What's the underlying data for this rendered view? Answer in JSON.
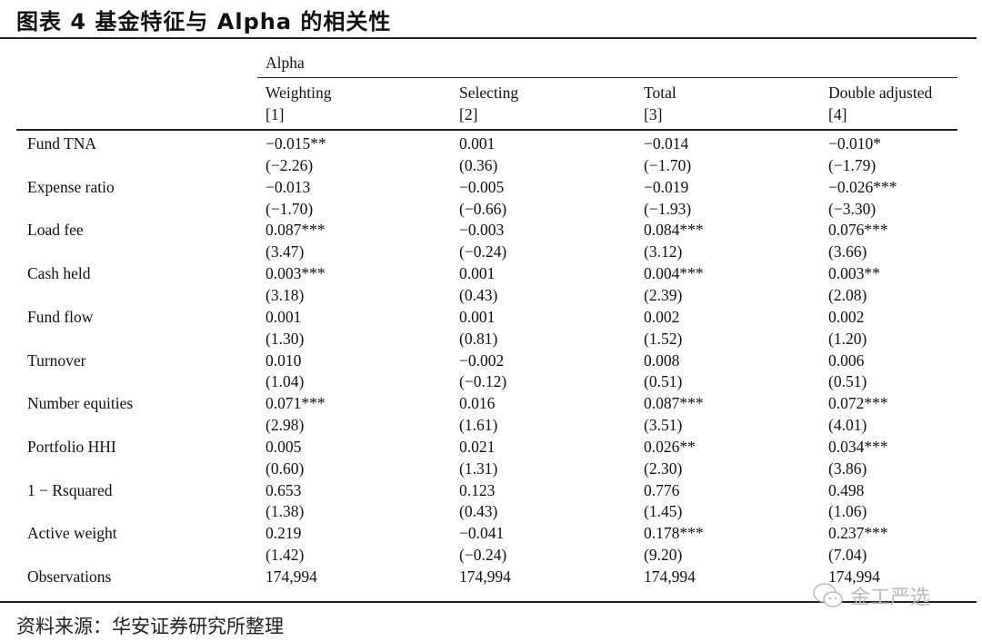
{
  "title": "图表 4 基金特征与 Alpha 的相关性",
  "table": {
    "group_header": "Alpha",
    "columns": [
      {
        "name": "Weighting",
        "index": "[1]"
      },
      {
        "name": "Selecting",
        "index": "[2]"
      },
      {
        "name": "Total",
        "index": "[3]"
      },
      {
        "name": "Double adjusted",
        "index": "[4]"
      }
    ],
    "rows": [
      {
        "label": "Fund TNA",
        "coef": [
          "−0.015**",
          "0.001",
          "−0.014",
          "−0.010*"
        ],
        "tstat": [
          "(−2.26)",
          "(0.36)",
          "(−1.70)",
          "(−1.79)"
        ]
      },
      {
        "label": "Expense ratio",
        "coef": [
          "−0.013",
          "−0.005",
          "−0.019",
          "−0.026***"
        ],
        "tstat": [
          "(−1.70)",
          "(−0.66)",
          "(−1.93)",
          "(−3.30)"
        ]
      },
      {
        "label": "Load fee",
        "coef": [
          "0.087***",
          "−0.003",
          "0.084***",
          "0.076***"
        ],
        "tstat": [
          "(3.47)",
          "(−0.24)",
          "(3.12)",
          "(3.66)"
        ]
      },
      {
        "label": "Cash held",
        "coef": [
          "0.003***",
          "0.001",
          "0.004***",
          "0.003**"
        ],
        "tstat": [
          "(3.18)",
          "(0.43)",
          "(2.39)",
          "(2.08)"
        ]
      },
      {
        "label": "Fund flow",
        "coef": [
          "0.001",
          "0.001",
          "0.002",
          "0.002"
        ],
        "tstat": [
          "(1.30)",
          "(0.81)",
          "(1.52)",
          "(1.20)"
        ]
      },
      {
        "label": "Turnover",
        "coef": [
          "0.010",
          "−0.002",
          "0.008",
          "0.006"
        ],
        "tstat": [
          "(1.04)",
          "(−0.12)",
          "(0.51)",
          "(0.51)"
        ]
      },
      {
        "label": "Number equities",
        "coef": [
          "0.071***",
          "0.016",
          "0.087***",
          "0.072***"
        ],
        "tstat": [
          "(2.98)",
          "(1.61)",
          "(3.51)",
          "(4.01)"
        ]
      },
      {
        "label": "Portfolio HHI",
        "coef": [
          "0.005",
          "0.021",
          "0.026**",
          "0.034***"
        ],
        "tstat": [
          "(0.60)",
          "(1.31)",
          "(2.30)",
          "(3.86)"
        ]
      },
      {
        "label": "1 − Rsquared",
        "coef": [
          "0.653",
          "0.123",
          "0.776",
          "0.498"
        ],
        "tstat": [
          "(1.38)",
          "(0.43)",
          "(1.45)",
          "(1.06)"
        ]
      },
      {
        "label": "Active weight",
        "coef": [
          "0.219",
          "−0.041",
          "0.178***",
          "0.237***"
        ],
        "tstat": [
          "(1.42)",
          "(−0.24)",
          "(9.20)",
          "(7.04)"
        ]
      }
    ],
    "observations": {
      "label": "Observations",
      "values": [
        "174,994",
        "174,994",
        "174,994",
        "174,994"
      ]
    }
  },
  "source": "资料来源：华安证券研究所整理",
  "watermark": "金工严选"
}
